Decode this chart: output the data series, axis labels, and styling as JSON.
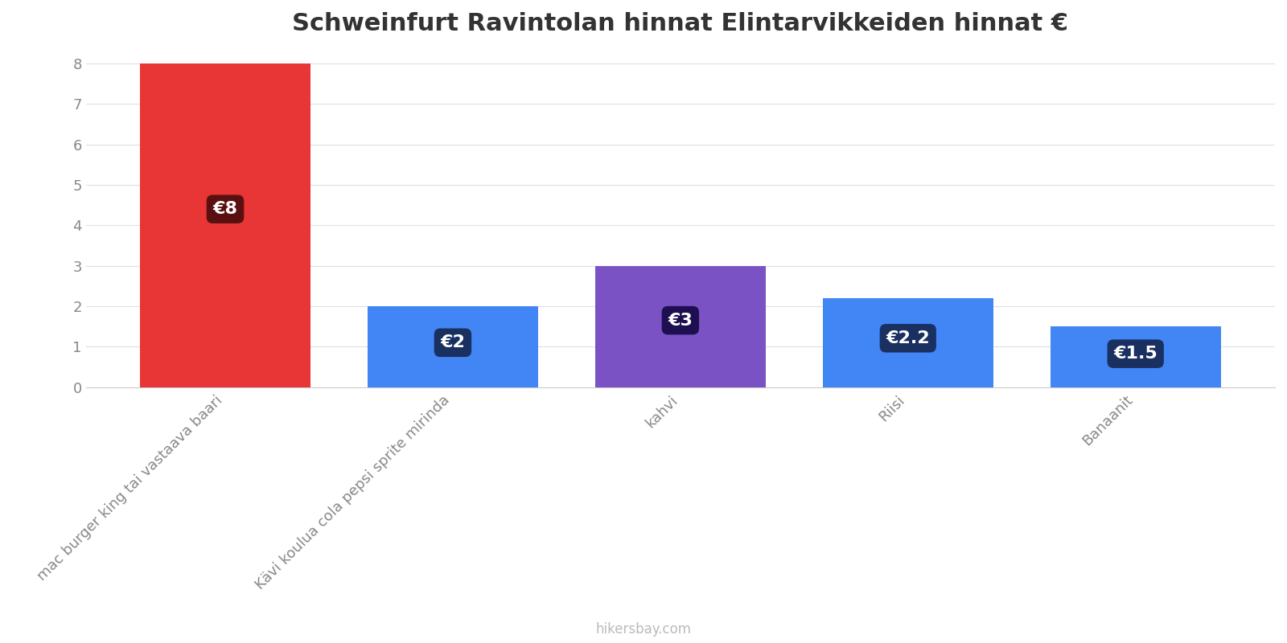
{
  "title": "Schweinfurt Ravintolan hinnat Elintarvikkeiden hinnat €",
  "categories": [
    "mac burger king tai vastaava baari",
    "Kävi koulua cola pepsi sprite mirinda",
    "kahvi",
    "Riisi",
    "Banaanit"
  ],
  "values": [
    8,
    2,
    3,
    2.2,
    1.5
  ],
  "bar_colors": [
    "#e83535",
    "#4285f4",
    "#7b52c4",
    "#4285f4",
    "#4285f4"
  ],
  "label_texts": [
    "€8",
    "€2",
    "€3",
    "€2.2",
    "€1.5"
  ],
  "label_box_colors": [
    "#5a1010",
    "#1a3060",
    "#1e1050",
    "#1a3060",
    "#1a3060"
  ],
  "background_color": "#ffffff",
  "grid_color": "#e0e0e0",
  "title_fontsize": 22,
  "tick_label_fontsize": 13,
  "footer_text": "hikersbay.com",
  "footer_color": "#bbbbbb",
  "ylim": [
    0,
    8.4
  ],
  "yticks": [
    0,
    1,
    2,
    3,
    4,
    5,
    6,
    7,
    8
  ],
  "label_fontsize": 16,
  "bar_width": 0.75
}
